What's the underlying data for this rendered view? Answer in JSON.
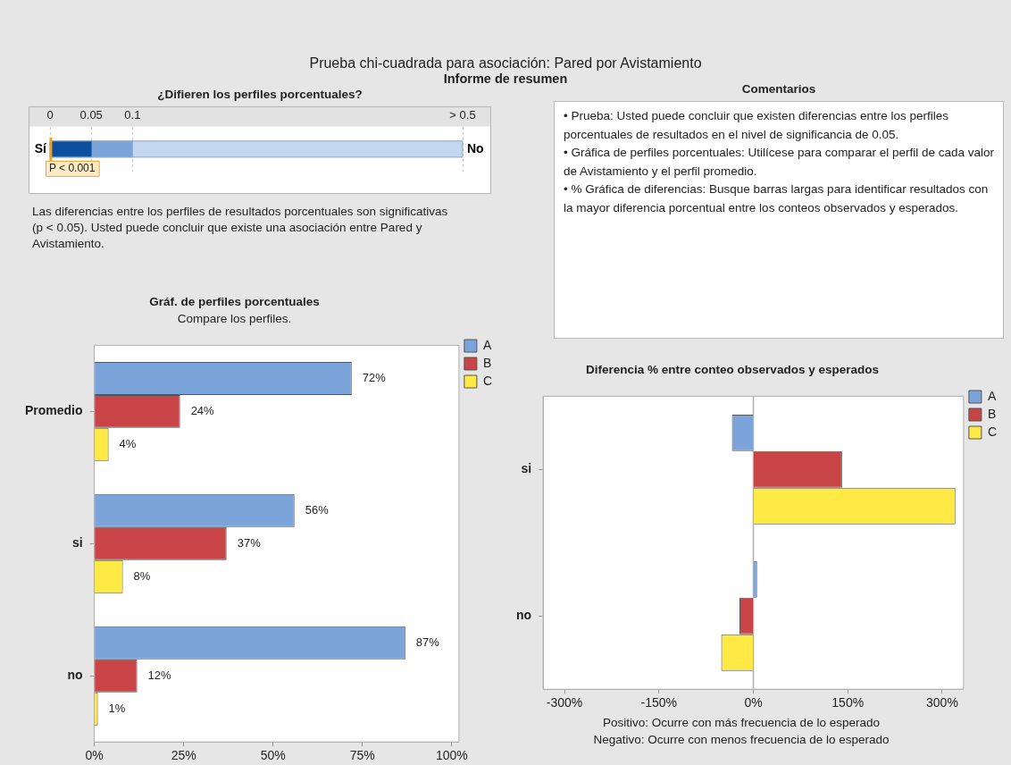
{
  "chart_data": [
    {
      "type": "other",
      "title": "Prueba chi-cuadrada para asociación: Pared por Avistamiento",
      "subtitle": "Informe de resumen"
    },
    {
      "type": "bar",
      "orientation": "horizontal",
      "stacked": true,
      "title": "¿Difieren los perfiles porcentuales?",
      "categories": [
        null
      ],
      "xlim": [
        0,
        0.5
      ],
      "xticks": [
        0,
        0.05,
        0.1,
        {
          "value": 0.5,
          "label": "> 0.5"
        }
      ],
      "grid": "x",
      "tick_labels": "x",
      "ref_lines": [
        {
          "axis": "x",
          "value": 0.001,
          "label": "P < 0.001",
          "color": "#f0a020"
        }
      ],
      "series": [
        {
          "color": "#0b4f9e",
          "values": [
            0.05
          ]
        },
        {
          "color": "#7ba4da",
          "values": [
            0.05
          ]
        },
        {
          "color": "#c3d7f0",
          "values": [
            0.4
          ]
        }
      ],
      "annotations": [
        "Sí",
        "No",
        "Las diferencias entre los perfiles de resultados porcentuales son significativas (p < 0.05). Usted puede concluir que existe una asociación entre Pared y Avistamiento."
      ]
    },
    {
      "type": "other",
      "title": "Comentarios",
      "annotations": [
        "•  Prueba: Usted puede concluir que existen diferencias entre los perfiles porcentuales de resultados en el nivel de significancia de 0.05.",
        "•  Gráfica de perfiles porcentuales: Utilícese para comparar el perfil de cada valor de Avistamiento y el perfil promedio.",
        "•  % Gráfica de diferencias: Busque barras largas para identificar resultados con la mayor diferencia porcentual entre los conteos observados y esperados."
      ]
    },
    {
      "type": "bar",
      "orientation": "horizontal",
      "title": "Gráf. de perfiles porcentuales",
      "subtitle": "Compare los perfiles.",
      "categories": [
        "Promedio",
        "si",
        "no"
      ],
      "xlim": [
        0,
        102
      ],
      "xticks": [
        {
          "value": 0,
          "label": "0%"
        },
        {
          "value": 25,
          "label": "25%"
        },
        {
          "value": 50,
          "label": "50%"
        },
        {
          "value": 75,
          "label": "75%"
        },
        {
          "value": 100,
          "label": "100%"
        }
      ],
      "legend": "top right",
      "series": [
        {
          "name": "A",
          "color": "#7ba4da",
          "values": [
            72,
            56,
            87
          ],
          "value_labels": [
            "72%",
            "56%",
            "87%"
          ]
        },
        {
          "name": "B",
          "color": "#c84446",
          "values": [
            24,
            37,
            12
          ],
          "value_labels": [
            "24%",
            "37%",
            "12%"
          ]
        },
        {
          "name": "C",
          "color": "#ffe944",
          "values": [
            4,
            8,
            1
          ],
          "value_labels": [
            "4%",
            "8%",
            "1%"
          ]
        }
      ]
    },
    {
      "type": "bar",
      "orientation": "horizontal",
      "title": "Diferencia % entre conteo observados y esperados",
      "categories": [
        "si",
        "no"
      ],
      "xlim": [
        -334,
        334
      ],
      "xticks": [
        {
          "value": -300,
          "label": "-300%"
        },
        {
          "value": -150,
          "label": "-150%"
        },
        {
          "value": 0,
          "label": "0%"
        },
        {
          "value": 150,
          "label": "150%"
        },
        {
          "value": 300,
          "label": "300%"
        }
      ],
      "legend": "top right",
      "ref_lines": [
        {
          "axis": "x",
          "value": 0,
          "color": "#b0b0b0"
        }
      ],
      "series": [
        {
          "name": "A",
          "color": "#7ba4da",
          "values": [
            -34,
            6
          ]
        },
        {
          "name": "B",
          "color": "#c84446",
          "values": [
            141,
            -22
          ]
        },
        {
          "name": "C",
          "color": "#ffe944",
          "values": [
            321,
            -51
          ]
        }
      ],
      "annotations": [
        "Positivo: Ocurre con más frecuencia de lo esperado",
        "Negativo: Ocurre con menos frecuencia de lo esperado"
      ]
    }
  ]
}
